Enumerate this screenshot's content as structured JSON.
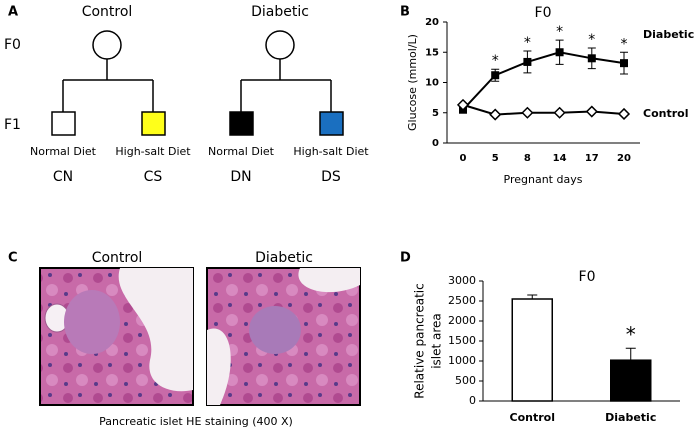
{
  "panel_a": {
    "letter": "A",
    "groups": [
      "Control",
      "Diabetic"
    ],
    "generations": [
      "F0",
      "F1"
    ],
    "diets": [
      "Normal Diet",
      "High-salt Diet",
      "Normal Diet",
      "High-salt Diet"
    ],
    "codes": [
      "CN",
      "CS",
      "DN",
      "DS"
    ],
    "colors": [
      "#ffffff",
      "#ffff1a",
      "#000000",
      "#1a6fc0"
    ]
  },
  "panel_c": {
    "letter": "C",
    "labels": [
      "Control",
      "Diabetic"
    ],
    "caption": "Pancreatic islet HE staining (400 X)"
  },
  "panel_b_letter": "B",
  "panel_d_letter": "D",
  "chart_data": [
    {
      "type": "line",
      "title": "F0",
      "x_label": "Pregnant days",
      "y_label": "Glucose (mmol/L)",
      "categories": [
        "0",
        "5",
        "8",
        "14",
        "17",
        "20"
      ],
      "series": [
        {
          "name": "Diabetic",
          "color": "#000000",
          "marker": "square",
          "values": [
            5.5,
            11.2,
            13.4,
            15,
            14,
            13.2
          ],
          "errors": [
            0.5,
            1,
            1.8,
            2,
            1.7,
            1.8
          ]
        },
        {
          "name": "Control",
          "color": "#000000",
          "marker": "diamond",
          "values": [
            6.3,
            4.7,
            5,
            5,
            5.2,
            4.8
          ]
        }
      ],
      "value_annotations": [
        null,
        "*",
        "*",
        "*",
        "*",
        "*"
      ],
      "ylim": [
        0,
        20
      ],
      "yticks": [
        0,
        5,
        10,
        15,
        20
      ]
    },
    {
      "type": "bar",
      "title": "F0",
      "y_label": [
        "Relative pancreatic",
        "islet area"
      ],
      "categories": [
        "Control",
        "Diabetic"
      ],
      "values": [
        2550,
        1020
      ],
      "errors": [
        100,
        300
      ],
      "colors": [
        "#ffffff",
        "#000000"
      ],
      "value_annotations": [
        null,
        "*"
      ],
      "ylim": [
        0,
        3000
      ],
      "yticks": [
        0,
        500,
        1000,
        1500,
        2000,
        2500,
        3000
      ]
    }
  ]
}
